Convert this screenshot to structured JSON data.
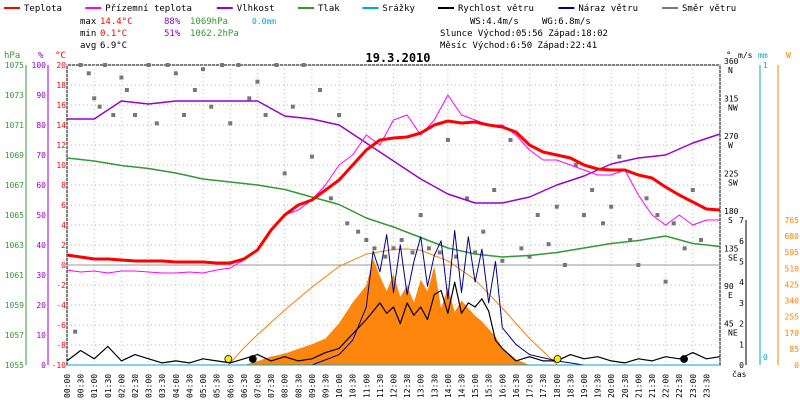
{
  "legend": [
    {
      "key": "teplota",
      "label": "Teplota",
      "color": "#ff0000"
    },
    {
      "key": "prizemni",
      "label": "Přízemní teplota",
      "color": "#ff00ff"
    },
    {
      "key": "vlhkost",
      "label": "Vlhkost",
      "color": "#9900cc"
    },
    {
      "key": "tlak",
      "label": "Tlak",
      "color": "#339933"
    },
    {
      "key": "srazky",
      "label": "Srážky",
      "color": "#00aacc"
    },
    {
      "key": "rychlost",
      "label": "Rychlost větru",
      "color": "#000000"
    },
    {
      "key": "naraz",
      "label": "Náraz větru",
      "color": "#000088"
    },
    {
      "key": "smer",
      "label": "Směr větru",
      "color": "#777777"
    }
  ],
  "stats": {
    "max_label": "max",
    "max_t": "14.4°C",
    "max_h": "88%",
    "max_p": "1069hPa",
    "max_r": "0.0mm",
    "min_label": "min",
    "min_t": "0.1°C",
    "min_h": "51%",
    "min_p": "1062.2hPa",
    "avg_label": "avg",
    "avg_t": "6.9°C",
    "ws": "WS:4.4m/s",
    "wg": "WG:6.8m/s",
    "sun": "Slunce Východ:05:56  Západ:18:02",
    "moon": "Měsíc  Východ:6:50   Západ:22:41"
  },
  "colors": {
    "temp": "#ff0000",
    "ground": "#ff00ff",
    "humidity": "#9900cc",
    "pressure": "#339933",
    "rain": "#00aacc",
    "speed": "#000000",
    "gust": "#000088",
    "dir": "#777777",
    "sun": "#ff8000",
    "solar": "#ff8000",
    "grid": "#bbbbbb",
    "zero": "#999999"
  },
  "chart_data": {
    "type": "line",
    "title": "19.3.2010",
    "xlabel": "čas",
    "x_ticks": [
      "00:00",
      "00:30",
      "01:00",
      "01:30",
      "02:00",
      "02:30",
      "03:00",
      "03:30",
      "04:00",
      "04:30",
      "05:00",
      "05:30",
      "06:00",
      "06:30",
      "07:00",
      "07:30",
      "08:00",
      "08:30",
      "09:00",
      "09:30",
      "10:00",
      "10:30",
      "11:00",
      "11:30",
      "12:00",
      "12:30",
      "13:00",
      "13:30",
      "14:00",
      "14:30",
      "15:00",
      "15:30",
      "16:00",
      "16:30",
      "17:00",
      "17:30",
      "18:00",
      "18:30",
      "19:00",
      "19:30",
      "20:00",
      "20:30",
      "21:00",
      "21:30",
      "22:00",
      "22:30",
      "23:00",
      "23:30"
    ],
    "xlim": [
      0,
      24
    ],
    "axes": {
      "hpa": {
        "label": "hPa",
        "ticks": [
          1055,
          1057,
          1059,
          1061,
          1063,
          1065,
          1067,
          1069,
          1071,
          1073,
          1075
        ]
      },
      "pct": {
        "label": "%",
        "ticks": [
          0,
          10,
          20,
          30,
          40,
          50,
          60,
          70,
          80,
          90,
          100
        ]
      },
      "temp": {
        "label": "°C",
        "ticks": [
          -10,
          -8,
          -6,
          -4,
          -2,
          0,
          2,
          4,
          6,
          8,
          10,
          12,
          14,
          16,
          18,
          20
        ]
      },
      "deg": {
        "label": "°",
        "ticks": [
          "45 NE",
          "90 E",
          "135 SE",
          "180 S",
          "225 SW",
          "270 W",
          "315 NW",
          "360 N"
        ]
      },
      "ms": {
        "label": "m/s",
        "ticks": [
          0,
          1,
          2,
          3,
          4,
          5,
          6,
          7
        ]
      },
      "mm": {
        "label": "mm",
        "ticks": [
          "0",
          "1"
        ]
      },
      "w": {
        "label": "W",
        "ticks": [
          0,
          85,
          170,
          255,
          340,
          425,
          510,
          595,
          680,
          765
        ]
      }
    },
    "series": [
      {
        "name": "Teplota",
        "unit": "°C",
        "x": [
          0,
          0.5,
          1,
          1.5,
          2,
          2.5,
          3,
          3.5,
          4,
          4.5,
          5,
          5.5,
          6,
          6.5,
          7,
          7.5,
          8,
          8.5,
          9,
          9.5,
          10,
          10.5,
          11,
          11.5,
          12,
          12.5,
          13,
          13.5,
          14,
          14.5,
          15,
          15.5,
          16,
          16.5,
          17,
          17.5,
          18,
          18.5,
          19,
          19.5,
          20,
          20.5,
          21,
          21.5,
          22,
          22.5,
          23,
          23.5,
          24
        ],
        "y": [
          1,
          0.8,
          0.6,
          0.6,
          0.5,
          0.4,
          0.4,
          0.4,
          0.3,
          0.3,
          0.3,
          0.2,
          0.2,
          0.6,
          1.5,
          3.5,
          5,
          6,
          6.5,
          7.5,
          8.5,
          10,
          11.5,
          12.5,
          12.7,
          12.8,
          13.2,
          14,
          14.4,
          14.2,
          14.3,
          14,
          13.8,
          13.3,
          12,
          11.3,
          11,
          10.7,
          10,
          9.6,
          9.5,
          9.5,
          9,
          8.7,
          7.8,
          7,
          6.3,
          5.6,
          5.5
        ]
      },
      {
        "name": "Přízemní teplota",
        "unit": "°C",
        "x": [
          0,
          0.5,
          1,
          1.5,
          2,
          2.5,
          3,
          3.5,
          4,
          4.5,
          5,
          5.5,
          6,
          6.5,
          7,
          7.5,
          8,
          8.5,
          9,
          9.5,
          10,
          10.5,
          11,
          11.5,
          12,
          12.5,
          13,
          13.5,
          14,
          14.5,
          15,
          15.5,
          16,
          16.5,
          17,
          17.5,
          18,
          18.5,
          19,
          19.5,
          20,
          20.5,
          21,
          21.5,
          22,
          22.5,
          23,
          23.5,
          24
        ],
        "y": [
          -0.5,
          -0.7,
          -0.6,
          -0.8,
          -0.6,
          -0.6,
          -0.7,
          -0.8,
          -0.8,
          -0.7,
          -0.8,
          -0.5,
          -0.3,
          0.5,
          1.5,
          3.5,
          5,
          5.5,
          6.5,
          8,
          10,
          11,
          13,
          12,
          14.5,
          15,
          13,
          14.5,
          17,
          15,
          14.5,
          14,
          14,
          13,
          11.5,
          10.5,
          10.5,
          10,
          9.5,
          9,
          9,
          9.5,
          7,
          5,
          4,
          5,
          4,
          4.5,
          4.5
        ]
      },
      {
        "name": "Vlhkost",
        "unit": "%",
        "x": [
          0,
          1,
          2,
          3,
          4,
          5,
          6,
          7,
          8,
          9,
          10,
          11,
          12,
          13,
          14,
          15,
          16,
          17,
          18,
          19,
          20,
          21,
          22,
          23,
          24
        ],
        "y": [
          82,
          82,
          88,
          87,
          88,
          88,
          88,
          88,
          83,
          82,
          80,
          74,
          68,
          62,
          57,
          54,
          54,
          56,
          60,
          63,
          67,
          69,
          70,
          74,
          77
        ]
      },
      {
        "name": "Tlak",
        "unit": "hPa",
        "x": [
          0,
          1,
          2,
          3,
          4,
          5,
          6,
          7,
          8,
          9,
          10,
          11,
          12,
          13,
          14,
          15,
          16,
          17,
          18,
          19,
          20,
          21,
          22,
          23,
          24
        ],
        "y": [
          1068.8,
          1068.6,
          1068.3,
          1068.1,
          1067.8,
          1067.4,
          1067.2,
          1067,
          1066.7,
          1066.2,
          1065.7,
          1064.8,
          1064.2,
          1063.5,
          1062.8,
          1062.4,
          1062.2,
          1062.3,
          1062.5,
          1062.8,
          1063.1,
          1063.3,
          1063.6,
          1063.1,
          1062.9
        ]
      },
      {
        "name": "Srážky",
        "unit": "mm",
        "x": [
          0,
          24
        ],
        "y": [
          0,
          0
        ]
      },
      {
        "name": "Rychlost větru",
        "unit": "m/s",
        "x": [
          0,
          0.5,
          1,
          1.5,
          2,
          2.5,
          3,
          3.5,
          4,
          4.5,
          5,
          5.5,
          6,
          6.5,
          7,
          7.5,
          8,
          8.5,
          9,
          9.5,
          10,
          10.5,
          11,
          11.25,
          11.5,
          11.75,
          12,
          12.25,
          12.5,
          12.75,
          13,
          13.25,
          13.5,
          13.75,
          14,
          14.25,
          14.5,
          14.75,
          15,
          15.25,
          15.5,
          15.75,
          16,
          16.5,
          17,
          17.5,
          18,
          18.5,
          19,
          19.5,
          20,
          20.5,
          21,
          21.5,
          22,
          22.5,
          23,
          23.5,
          24
        ],
        "y": [
          0.2,
          0.7,
          0.3,
          0.9,
          0.2,
          0.5,
          0.3,
          0.1,
          0.2,
          0.1,
          0.3,
          0.2,
          0.1,
          0.3,
          0.5,
          0.2,
          0.4,
          0.2,
          0.3,
          0.6,
          0.8,
          1.5,
          2.2,
          2.6,
          3,
          2.5,
          2.8,
          2,
          3,
          2.4,
          2.8,
          2.2,
          3.4,
          3.6,
          2.5,
          4,
          2.5,
          3,
          2.8,
          3.2,
          2.6,
          1.2,
          0.8,
          0.2,
          0.4,
          0.2,
          0.2,
          0.5,
          0.3,
          0.4,
          0.2,
          0.1,
          0.3,
          0.2,
          0.4,
          0.3,
          0.6,
          0.3,
          0.4
        ]
      },
      {
        "name": "Náraz větru",
        "unit": "m/s",
        "x": [
          0,
          1,
          2,
          3,
          4,
          5,
          6,
          7,
          8,
          9,
          10,
          10.5,
          11,
          11.25,
          11.5,
          11.75,
          12,
          12.25,
          12.5,
          12.75,
          13,
          13.25,
          13.5,
          13.75,
          14,
          14.25,
          14.5,
          14.75,
          15,
          15.25,
          15.5,
          15.75,
          16,
          16.5,
          17,
          18,
          19,
          20,
          21,
          22,
          23,
          24
        ],
        "y": [
          0,
          0,
          0,
          0,
          0,
          0,
          0,
          0,
          0,
          0,
          0.5,
          1.2,
          2.8,
          5.5,
          4.5,
          6.3,
          3.5,
          5.8,
          3.4,
          5,
          6.2,
          3.8,
          5.3,
          6,
          3.2,
          6.5,
          3.5,
          6.2,
          4,
          5.6,
          3,
          5,
          1.8,
          1,
          0.5,
          0.2,
          0,
          0,
          0,
          0,
          0,
          0
        ]
      },
      {
        "name": "Směr větru",
        "unit": "°",
        "type": "scatter",
        "x": [
          0.3,
          0.5,
          0.8,
          1,
          1.2,
          1.4,
          1.7,
          2,
          2.2,
          2.5,
          3,
          3.3,
          3.7,
          4,
          4.3,
          4.7,
          5,
          5.3,
          5.7,
          6,
          6.3,
          6.7,
          7,
          7.3,
          7.7,
          8,
          8.3,
          8.7,
          9,
          9.3,
          9.7,
          10,
          10.3,
          10.7,
          11,
          11.3,
          11.7,
          12,
          12.3,
          12.7,
          13,
          13.3,
          13.7,
          14,
          14.3,
          14.7,
          15,
          15.3,
          15.7,
          16,
          16.3,
          16.7,
          17,
          17.3,
          17.7,
          18,
          18.3,
          18.7,
          19,
          19.3,
          19.7,
          20,
          20.3,
          20.7,
          21,
          21.3,
          21.7,
          22,
          22.3,
          22.7,
          23,
          23.3
        ],
        "y": [
          40,
          360,
          350,
          320,
          310,
          360,
          300,
          345,
          330,
          300,
          360,
          290,
          360,
          350,
          300,
          330,
          355,
          310,
          360,
          290,
          360,
          320,
          340,
          300,
          360,
          230,
          310,
          360,
          250,
          330,
          200,
          300,
          170,
          160,
          150,
          140,
          130,
          140,
          150,
          135,
          180,
          140,
          135,
          270,
          130,
          200,
          135,
          160,
          210,
          125,
          270,
          140,
          130,
          180,
          145,
          190,
          120,
          240,
          180,
          210,
          170,
          190,
          250,
          150,
          120,
          200,
          180,
          100,
          170,
          140,
          210,
          150
        ]
      }
    ],
    "solar_radiation": {
      "name": "Sluneční záření",
      "unit": "W",
      "x": [
        6.5,
        7,
        7.5,
        8,
        8.5,
        9,
        9.5,
        10,
        10.5,
        11,
        11.25,
        11.5,
        11.75,
        12,
        12.25,
        12.5,
        12.75,
        13,
        13.25,
        13.5,
        13.75,
        14,
        14.25,
        14.5,
        14.75,
        15,
        15.25,
        15.5,
        15.75,
        16,
        16.5,
        17
      ],
      "y": [
        0,
        20,
        45,
        60,
        85,
        110,
        140,
        220,
        330,
        420,
        560,
        470,
        390,
        480,
        360,
        420,
        330,
        450,
        390,
        520,
        300,
        410,
        280,
        340,
        300,
        260,
        230,
        190,
        150,
        90,
        30,
        0
      ]
    },
    "sun_curve": {
      "name": "Výška slunce",
      "unit": "W",
      "x": [
        5.93,
        6.5,
        7,
        8,
        9,
        10,
        11,
        12,
        12.5,
        13,
        14,
        15,
        16,
        17,
        18.03
      ],
      "y": [
        0,
        90,
        160,
        290,
        410,
        520,
        585,
        610,
        612,
        605,
        550,
        450,
        300,
        140,
        0
      ]
    },
    "markers": [
      {
        "name": "sunrise",
        "x": 5.93
      },
      {
        "name": "sunset",
        "x": 18.03
      },
      {
        "name": "moonrise",
        "x": 6.83
      },
      {
        "name": "moonset",
        "x": 22.68
      }
    ]
  }
}
